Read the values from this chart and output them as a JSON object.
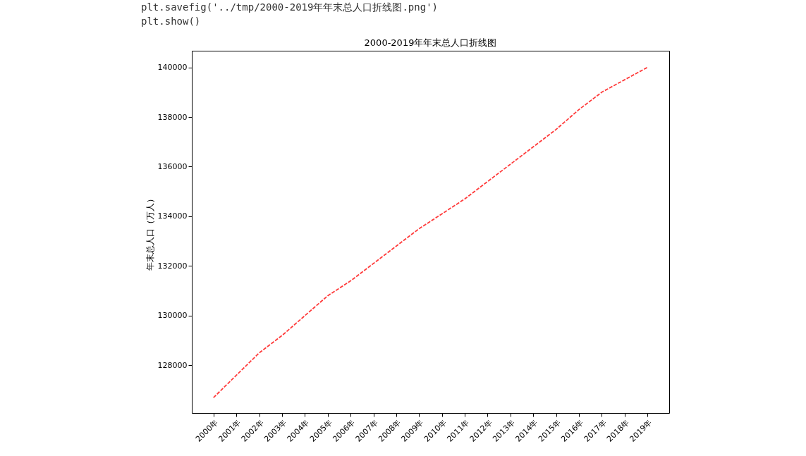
{
  "chart_data": {
    "type": "line",
    "title": "2000-2019年年末总人口折线图",
    "ylabel": "年末总人口（万人）",
    "categories": [
      "2000年",
      "2001年",
      "2002年",
      "2003年",
      "2004年",
      "2005年",
      "2006年",
      "2007年",
      "2008年",
      "2009年",
      "2010年",
      "2011年",
      "2012年",
      "2013年",
      "2014年",
      "2015年",
      "2016年",
      "2017年",
      "2018年",
      "2019年"
    ],
    "series": [
      {
        "color": "#ff3b3b",
        "values": [
          126700,
          127600,
          128500,
          129200,
          130000,
          130800,
          131400,
          132100,
          132800,
          133500,
          134100,
          134700,
          135400,
          136100,
          136800,
          137500,
          138300,
          139000,
          139500,
          140000
        ]
      }
    ],
    "ylim": [
      126080,
      140668
    ],
    "yticks": [
      128000,
      130000,
      132000,
      134000,
      136000,
      138000,
      140000
    ],
    "line_style": "dashed",
    "grid": false,
    "annotations": [
      "plt.savefig('../tmp/2000-2019年年末总人口折线图.png')",
      "plt.show()"
    ]
  }
}
